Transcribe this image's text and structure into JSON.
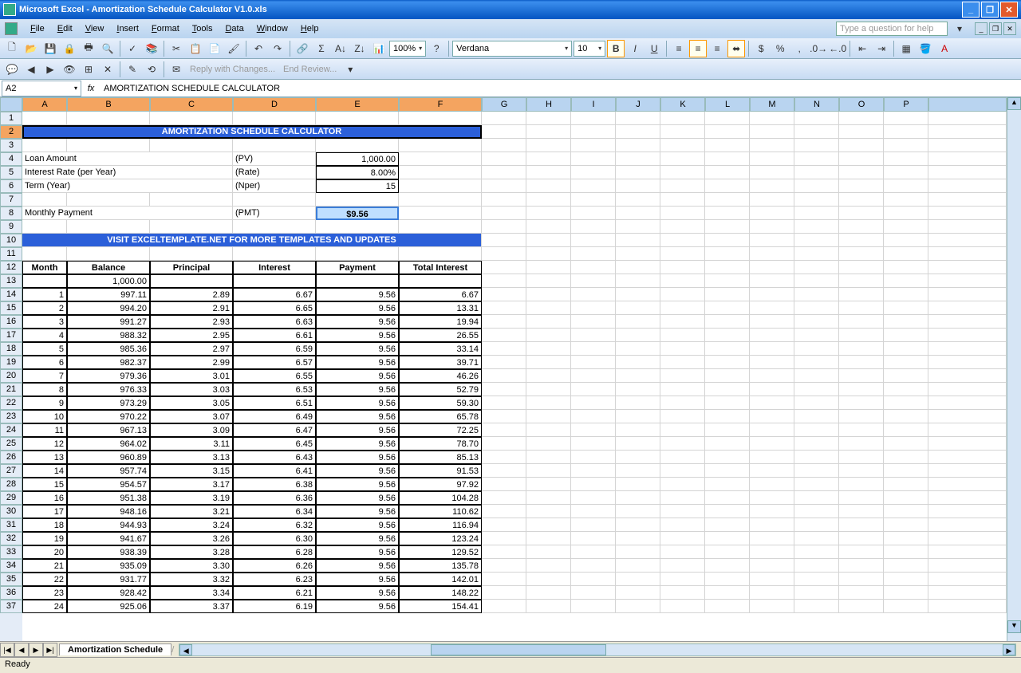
{
  "title": "Microsoft Excel - Amortization Schedule Calculator V1.0.xls",
  "menus": [
    "File",
    "Edit",
    "View",
    "Insert",
    "Format",
    "Tools",
    "Data",
    "Window",
    "Help"
  ],
  "helpPlaceholder": "Type a question for help",
  "font": {
    "name": "Verdana",
    "size": "10"
  },
  "zoom": "100%",
  "nameBox": "A2",
  "formulaBar": "AMORTIZATION SCHEDULE CALCULATOR",
  "reviewing": {
    "reply": "Reply with Changes...",
    "end": "End Review..."
  },
  "cols": [
    "A",
    "B",
    "C",
    "D",
    "E",
    "F",
    "G",
    "H",
    "I",
    "J",
    "K",
    "L",
    "M",
    "N",
    "O",
    "P"
  ],
  "selCols": [
    "A",
    "B",
    "C",
    "D",
    "E",
    "F"
  ],
  "header1": "AMORTIZATION SCHEDULE CALCULATOR",
  "header2": "VISIT EXCELTEMPLATE.NET FOR MORE TEMPLATES AND UPDATES",
  "inputs": {
    "loanLabel": "Loan Amount",
    "loanCode": "(PV)",
    "loanVal": "1,000.00",
    "rateLabel": "Interest Rate (per Year)",
    "rateCode": "(Rate)",
    "rateVal": "8.00%",
    "termLabel": "Term (Year)",
    "termCode": "(Nper)",
    "termVal": "15",
    "pmtLabel": "Monthly Payment",
    "pmtCode": "(PMT)",
    "pmtVal": "$9.56"
  },
  "tableHeaders": [
    "Month",
    "Balance",
    "Principal",
    "Interest",
    "Payment",
    "Total Interest"
  ],
  "initialBalance": "1,000.00",
  "rows": [
    [
      "1",
      "997.11",
      "2.89",
      "6.67",
      "9.56",
      "6.67"
    ],
    [
      "2",
      "994.20",
      "2.91",
      "6.65",
      "9.56",
      "13.31"
    ],
    [
      "3",
      "991.27",
      "2.93",
      "6.63",
      "9.56",
      "19.94"
    ],
    [
      "4",
      "988.32",
      "2.95",
      "6.61",
      "9.56",
      "26.55"
    ],
    [
      "5",
      "985.36",
      "2.97",
      "6.59",
      "9.56",
      "33.14"
    ],
    [
      "6",
      "982.37",
      "2.99",
      "6.57",
      "9.56",
      "39.71"
    ],
    [
      "7",
      "979.36",
      "3.01",
      "6.55",
      "9.56",
      "46.26"
    ],
    [
      "8",
      "976.33",
      "3.03",
      "6.53",
      "9.56",
      "52.79"
    ],
    [
      "9",
      "973.29",
      "3.05",
      "6.51",
      "9.56",
      "59.30"
    ],
    [
      "10",
      "970.22",
      "3.07",
      "6.49",
      "9.56",
      "65.78"
    ],
    [
      "11",
      "967.13",
      "3.09",
      "6.47",
      "9.56",
      "72.25"
    ],
    [
      "12",
      "964.02",
      "3.11",
      "6.45",
      "9.56",
      "78.70"
    ],
    [
      "13",
      "960.89",
      "3.13",
      "6.43",
      "9.56",
      "85.13"
    ],
    [
      "14",
      "957.74",
      "3.15",
      "6.41",
      "9.56",
      "91.53"
    ],
    [
      "15",
      "954.57",
      "3.17",
      "6.38",
      "9.56",
      "97.92"
    ],
    [
      "16",
      "951.38",
      "3.19",
      "6.36",
      "9.56",
      "104.28"
    ],
    [
      "17",
      "948.16",
      "3.21",
      "6.34",
      "9.56",
      "110.62"
    ],
    [
      "18",
      "944.93",
      "3.24",
      "6.32",
      "9.56",
      "116.94"
    ],
    [
      "19",
      "941.67",
      "3.26",
      "6.30",
      "9.56",
      "123.24"
    ],
    [
      "20",
      "938.39",
      "3.28",
      "6.28",
      "9.56",
      "129.52"
    ],
    [
      "21",
      "935.09",
      "3.30",
      "6.26",
      "9.56",
      "135.78"
    ],
    [
      "22",
      "931.77",
      "3.32",
      "6.23",
      "9.56",
      "142.01"
    ],
    [
      "23",
      "928.42",
      "3.34",
      "6.21",
      "9.56",
      "148.22"
    ],
    [
      "24",
      "925.06",
      "3.37",
      "6.19",
      "9.56",
      "154.41"
    ]
  ],
  "sheetTab": "Amortization Schedule",
  "status": "Ready",
  "colors": {
    "blueHeader": "#2b5fd9",
    "pmtBox": "#bfdfff",
    "selHeader": "#f4a460"
  }
}
